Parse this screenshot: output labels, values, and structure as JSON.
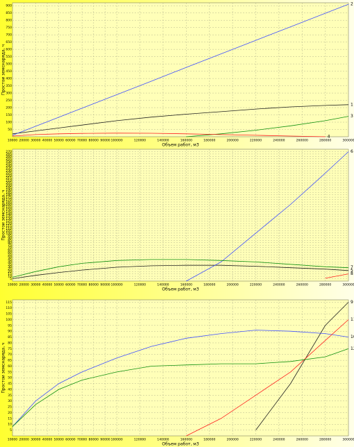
{
  "chart_data": [
    {
      "type": "line",
      "x_label": "Объем работ, м3",
      "y_label": "Простои земснаряда, ч",
      "x": [
        10000,
        30000,
        50000,
        70000,
        100000,
        130000,
        160000,
        190000,
        220000,
        250000,
        280000,
        300000
      ],
      "xlim": [
        10000,
        300000
      ],
      "xticks": [
        10000,
        20000,
        30000,
        40000,
        50000,
        60000,
        70000,
        80000,
        90000,
        100000,
        120000,
        140000,
        160000,
        180000,
        200000,
        220000,
        240000,
        260000,
        280000,
        300000
      ],
      "ylim": [
        0,
        920
      ],
      "yticks": [
        50,
        100,
        150,
        200,
        250,
        300,
        350,
        400,
        450,
        500,
        550,
        600,
        650,
        700,
        750,
        800,
        850,
        900
      ],
      "grid": true,
      "series": [
        {
          "name": "1",
          "color": "#202020",
          "values": [
            20,
            40,
            60,
            80,
            110,
            135,
            155,
            172,
            190,
            205,
            215,
            220
          ]
        },
        {
          "name": "2",
          "color": "#4050ff",
          "values": [
            10,
            72,
            134,
            196,
            289,
            382,
            476,
            569,
            662,
            755,
            848,
            910
          ]
        },
        {
          "name": "3",
          "color": "#109010",
          "values": [
            null,
            null,
            null,
            null,
            null,
            null,
            0,
            20,
            45,
            75,
            110,
            140
          ]
        },
        {
          "name": "4",
          "color": "#ff2020",
          "values": [
            5,
            15,
            20,
            23,
            25,
            24,
            20,
            15,
            10,
            5,
            0,
            null
          ]
        }
      ]
    },
    {
      "type": "line",
      "x_label": "Объем работ, м3",
      "y_label": "Простои земснаряда, ч",
      "x": [
        10000,
        30000,
        50000,
        70000,
        100000,
        130000,
        160000,
        190000,
        220000,
        250000,
        280000,
        300000
      ],
      "xlim": [
        10000,
        300000
      ],
      "xticks": [
        10000,
        20000,
        30000,
        40000,
        50000,
        60000,
        70000,
        80000,
        90000,
        100000,
        120000,
        140000,
        160000,
        180000,
        200000,
        220000,
        240000,
        260000,
        280000,
        300000
      ],
      "ylim": [
        0,
        275
      ],
      "yticks": [
        5,
        10,
        15,
        20,
        25,
        30,
        35,
        40,
        45,
        50,
        55,
        60,
        65,
        70,
        75,
        80,
        85,
        90,
        95,
        100,
        105,
        110,
        115,
        120,
        125,
        130,
        135,
        140,
        145,
        150,
        155,
        160,
        165,
        170,
        175,
        180,
        185,
        190,
        195,
        200,
        205,
        210,
        215,
        220,
        225,
        230,
        235,
        240,
        245,
        250,
        255,
        260,
        265,
        270
      ],
      "grid": true,
      "series": [
        {
          "name": "5",
          "color": "#202020",
          "values": [
            5,
            12,
            18,
            23,
            29,
            32,
            33,
            33,
            31,
            28,
            25,
            22
          ]
        },
        {
          "name": "6",
          "color": "#4050ff",
          "values": [
            null,
            null,
            null,
            null,
            null,
            null,
            0,
            40,
            100,
            160,
            225,
            270
          ]
        },
        {
          "name": "7",
          "color": "#109010",
          "values": [
            8,
            20,
            30,
            37,
            43,
            45,
            45,
            43,
            40,
            35,
            30,
            28
          ]
        },
        {
          "name": "8",
          "color": "#ff2020",
          "values": [
            null,
            null,
            null,
            null,
            null,
            null,
            null,
            null,
            null,
            null,
            6,
            15
          ]
        }
      ]
    },
    {
      "type": "line",
      "x_label": "Объем работ, м3",
      "y_label": "Простои земснаряда, ч",
      "x": [
        10000,
        30000,
        50000,
        70000,
        100000,
        130000,
        160000,
        190000,
        220000,
        250000,
        280000,
        300000
      ],
      "xlim": [
        10000,
        300000
      ],
      "xticks": [
        10000,
        20000,
        30000,
        40000,
        50000,
        60000,
        70000,
        80000,
        90000,
        100000,
        120000,
        140000,
        160000,
        180000,
        200000,
        220000,
        240000,
        260000,
        280000,
        300000
      ],
      "ylim": [
        0,
        117
      ],
      "yticks": [
        5,
        10,
        15,
        20,
        25,
        30,
        35,
        40,
        45,
        50,
        55,
        60,
        65,
        70,
        75,
        80,
        85,
        90,
        95,
        100,
        105,
        110,
        115
      ],
      "grid": true,
      "series": [
        {
          "name": "9",
          "color": "#202020",
          "values": [
            null,
            null,
            null,
            null,
            null,
            null,
            null,
            null,
            5,
            45,
            95,
            115
          ]
        },
        {
          "name": "10",
          "color": "#4050ff",
          "values": [
            8,
            30,
            45,
            55,
            67,
            77,
            84,
            88,
            91,
            90,
            88,
            85
          ]
        },
        {
          "name": "11",
          "color": "#ff2020",
          "values": [
            null,
            null,
            null,
            null,
            null,
            null,
            0,
            15,
            35,
            55,
            82,
            100
          ]
        },
        {
          "name": "12",
          "color": "#109010",
          "values": [
            8,
            27,
            40,
            48,
            55,
            60,
            61,
            62,
            62,
            64,
            68,
            75
          ]
        }
      ]
    }
  ]
}
